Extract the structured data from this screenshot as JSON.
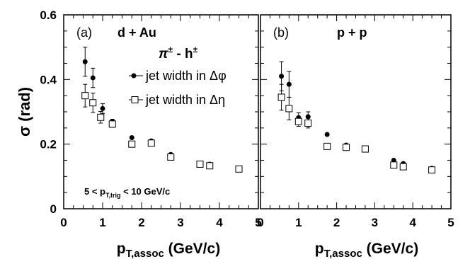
{
  "chart_data": [
    {
      "type": "scatter",
      "panel_label": "(a)",
      "system": "d + Au",
      "pair_label": "π± - h±",
      "cut_label": "5 < p_T,trig < 10 GeV/c",
      "xlabel": "p_T,assoc (GeV/c)",
      "ylabel": "σ (rad)",
      "xlim": [
        0,
        5
      ],
      "ylim": [
        0,
        0.6
      ],
      "xticks": [
        "0",
        "1",
        "2",
        "3",
        "4",
        "5"
      ],
      "yticks": [
        "0",
        "0.2",
        "0.4",
        "0.6"
      ],
      "legend": [
        {
          "name": "jet width in Δφ",
          "marker": "filled-circle"
        },
        {
          "name": "jet width in Δη",
          "marker": "open-square"
        }
      ],
      "series": [
        {
          "name": "jet width in Δφ",
          "marker": "filled-circle",
          "x": [
            0.55,
            0.75,
            1.0,
            1.25,
            1.75,
            2.25,
            2.75,
            3.5,
            3.75,
            4.5
          ],
          "y": [
            0.455,
            0.405,
            0.31,
            0.27,
            0.22,
            0.21,
            0.168,
            0.14,
            0.138,
            0.125
          ],
          "err": [
            0.045,
            0.03,
            0.015,
            0.007,
            0.006,
            0.006,
            0.006,
            0.006,
            0.006,
            0.006
          ]
        },
        {
          "name": "jet width in Δη",
          "marker": "open-square",
          "x": [
            0.55,
            0.75,
            0.95,
            1.25,
            1.75,
            2.25,
            2.75,
            3.5,
            3.75,
            4.5
          ],
          "y": [
            0.35,
            0.328,
            0.283,
            0.262,
            0.2,
            0.203,
            0.16,
            0.138,
            0.133,
            0.123
          ],
          "err": [
            0.035,
            0.03,
            0.018,
            0.01,
            0.006,
            0.008,
            0.006,
            0.006,
            0.006,
            0.006
          ]
        }
      ]
    },
    {
      "type": "scatter",
      "panel_label": "(b)",
      "system": "p + p",
      "xlabel": "p_T,assoc (GeV/c)",
      "xlim": [
        0,
        5
      ],
      "ylim": [
        0,
        0.6
      ],
      "xticks": [
        "0",
        "1",
        "2",
        "3",
        "4",
        "5"
      ],
      "series": [
        {
          "name": "jet width in Δφ",
          "marker": "filled-circle",
          "x": [
            0.55,
            0.75,
            1.0,
            1.25,
            1.75,
            2.25,
            2.75,
            3.5,
            3.75,
            4.5
          ],
          "y": [
            0.41,
            0.385,
            0.282,
            0.285,
            0.23,
            0.197,
            0.187,
            0.15,
            0.14,
            0.125
          ],
          "err": [
            0.045,
            0.04,
            0.015,
            0.015,
            0.006,
            0.006,
            0.006,
            0.006,
            0.006,
            0.006
          ]
        },
        {
          "name": "jet width in Δη",
          "marker": "open-square",
          "x": [
            0.55,
            0.75,
            1.0,
            1.25,
            1.75,
            2.25,
            2.75,
            3.5,
            3.75,
            4.5
          ],
          "y": [
            0.345,
            0.31,
            0.27,
            0.265,
            0.193,
            0.19,
            0.185,
            0.135,
            0.13,
            0.12
          ],
          "err": [
            0.04,
            0.035,
            0.015,
            0.015,
            0.006,
            0.006,
            0.006,
            0.006,
            0.006,
            0.006
          ]
        }
      ]
    }
  ]
}
